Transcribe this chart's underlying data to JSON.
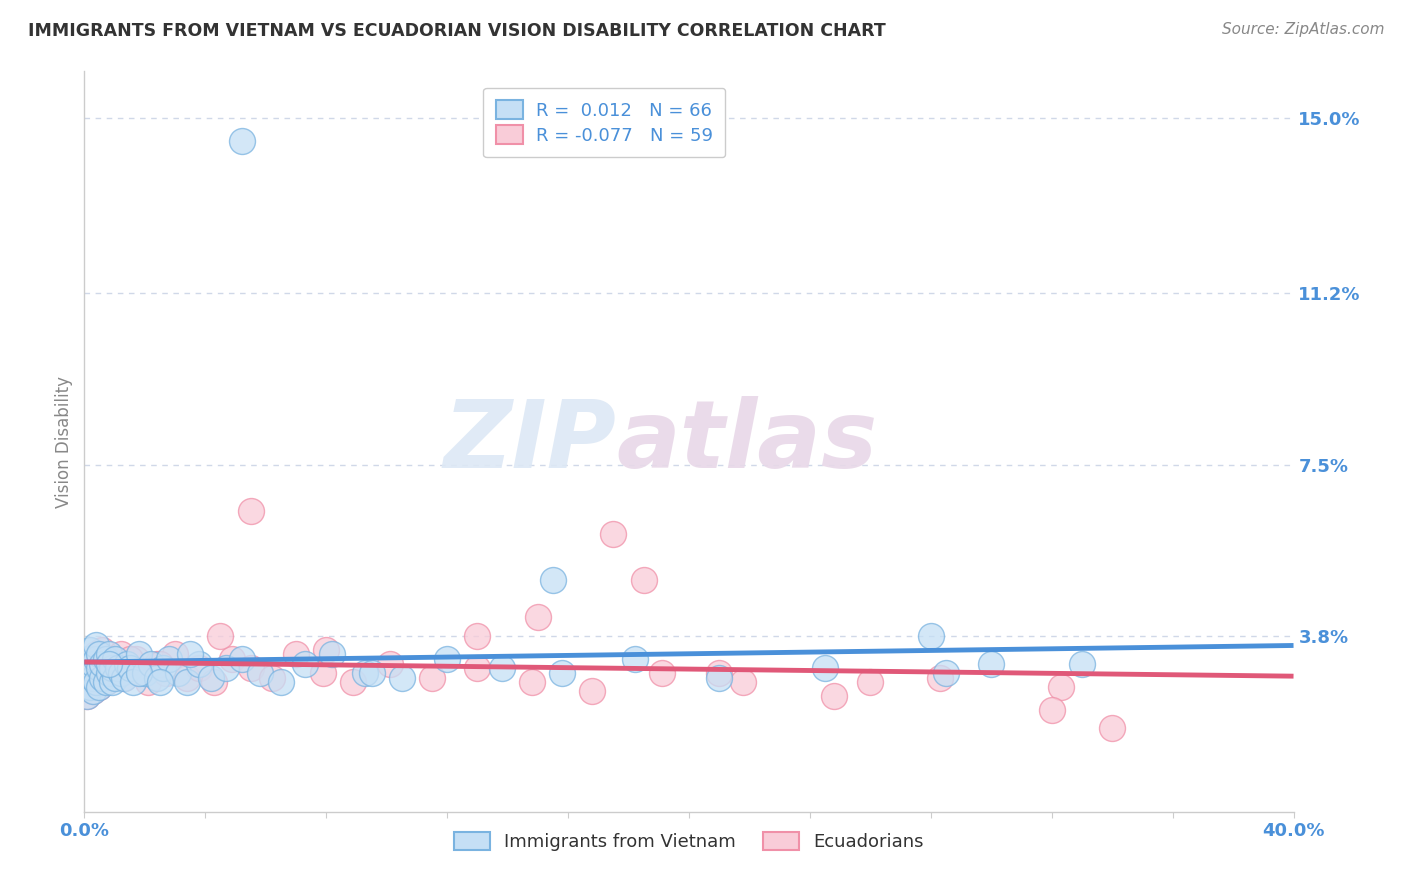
{
  "title": "IMMIGRANTS FROM VIETNAM VS ECUADORIAN VISION DISABILITY CORRELATION CHART",
  "source": "Source: ZipAtlas.com",
  "ylabel": "Vision Disability",
  "watermark_zip": "ZIP",
  "watermark_atlas": "atlas",
  "xlim": [
    0.0,
    0.4
  ],
  "ylim": [
    0.0,
    0.16
  ],
  "xticks": [
    0.0,
    0.04,
    0.08,
    0.12,
    0.16,
    0.2,
    0.24,
    0.28,
    0.32,
    0.36,
    0.4
  ],
  "ytick_vals": [
    0.0,
    0.038,
    0.075,
    0.112,
    0.15
  ],
  "ytick_labels": [
    "",
    "3.8%",
    "7.5%",
    "11.2%",
    "15.0%"
  ],
  "xtick_labels": [
    "0.0%",
    "",
    "",
    "",
    "",
    "",
    "",
    "",
    "",
    "",
    "40.0%"
  ],
  "blue_R": "0.012",
  "blue_N": "66",
  "pink_R": "-0.077",
  "pink_N": "59",
  "legend_label1": "Immigrants from Vietnam",
  "legend_label2": "Ecuadorians",
  "blue_fill": "#c5dff5",
  "pink_fill": "#f9ccd8",
  "blue_edge": "#7ab3e0",
  "pink_edge": "#f090a8",
  "blue_line": "#4a90d9",
  "pink_line": "#e05878",
  "title_color": "#333333",
  "tick_color": "#4a90d9",
  "ylabel_color": "#888888",
  "source_color": "#888888",
  "grid_color": "#d0d8e8",
  "background": "#ffffff",
  "blue_scatter_x": [
    0.001,
    0.001,
    0.001,
    0.002,
    0.002,
    0.002,
    0.003,
    0.003,
    0.003,
    0.004,
    0.004,
    0.004,
    0.005,
    0.005,
    0.005,
    0.006,
    0.006,
    0.007,
    0.007,
    0.008,
    0.008,
    0.009,
    0.009,
    0.01,
    0.01,
    0.011,
    0.012,
    0.013,
    0.014,
    0.015,
    0.016,
    0.018,
    0.02,
    0.022,
    0.024,
    0.026,
    0.028,
    0.031,
    0.034,
    0.038,
    0.042,
    0.047,
    0.052,
    0.058,
    0.065,
    0.073,
    0.082,
    0.093,
    0.105,
    0.12,
    0.138,
    0.158,
    0.182,
    0.21,
    0.245,
    0.285,
    0.33,
    0.28,
    0.155,
    0.095,
    0.035,
    0.3,
    0.052,
    0.018,
    0.025,
    0.008
  ],
  "blue_scatter_y": [
    0.025,
    0.03,
    0.033,
    0.027,
    0.031,
    0.035,
    0.026,
    0.029,
    0.032,
    0.028,
    0.033,
    0.036,
    0.027,
    0.031,
    0.034,
    0.029,
    0.032,
    0.028,
    0.033,
    0.03,
    0.034,
    0.028,
    0.031,
    0.029,
    0.033,
    0.031,
    0.03,
    0.029,
    0.032,
    0.031,
    0.028,
    0.034,
    0.03,
    0.032,
    0.029,
    0.031,
    0.033,
    0.03,
    0.028,
    0.032,
    0.029,
    0.031,
    0.033,
    0.03,
    0.028,
    0.032,
    0.034,
    0.03,
    0.029,
    0.033,
    0.031,
    0.03,
    0.033,
    0.029,
    0.031,
    0.03,
    0.032,
    0.038,
    0.05,
    0.03,
    0.034,
    0.032,
    0.145,
    0.03,
    0.028,
    0.032
  ],
  "pink_scatter_x": [
    0.001,
    0.001,
    0.002,
    0.002,
    0.003,
    0.003,
    0.004,
    0.004,
    0.005,
    0.005,
    0.006,
    0.006,
    0.007,
    0.007,
    0.008,
    0.009,
    0.01,
    0.011,
    0.012,
    0.013,
    0.015,
    0.017,
    0.019,
    0.021,
    0.024,
    0.027,
    0.03,
    0.034,
    0.038,
    0.043,
    0.049,
    0.055,
    0.062,
    0.07,
    0.079,
    0.089,
    0.101,
    0.115,
    0.13,
    0.148,
    0.168,
    0.191,
    0.218,
    0.248,
    0.283,
    0.323,
    0.185,
    0.13,
    0.26,
    0.045,
    0.08,
    0.15,
    0.21,
    0.025,
    0.055,
    0.175,
    0.32,
    0.34,
    0.015
  ],
  "pink_scatter_y": [
    0.025,
    0.031,
    0.028,
    0.033,
    0.026,
    0.03,
    0.029,
    0.034,
    0.027,
    0.032,
    0.03,
    0.035,
    0.028,
    0.031,
    0.033,
    0.029,
    0.032,
    0.03,
    0.034,
    0.029,
    0.031,
    0.033,
    0.03,
    0.028,
    0.032,
    0.03,
    0.034,
    0.029,
    0.031,
    0.028,
    0.033,
    0.031,
    0.029,
    0.034,
    0.03,
    0.028,
    0.032,
    0.029,
    0.031,
    0.028,
    0.026,
    0.03,
    0.028,
    0.025,
    0.029,
    0.027,
    0.05,
    0.038,
    0.028,
    0.038,
    0.035,
    0.042,
    0.03,
    0.032,
    0.065,
    0.06,
    0.022,
    0.018,
    0.033
  ]
}
